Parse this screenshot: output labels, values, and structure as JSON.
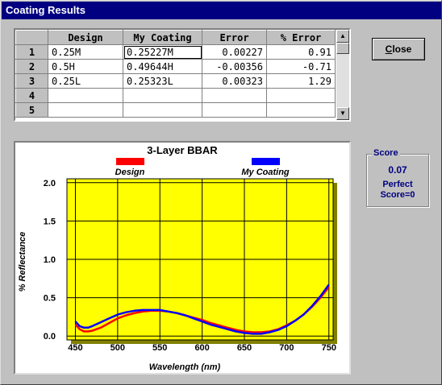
{
  "window": {
    "title": "Coating Results"
  },
  "grid": {
    "columns": [
      "Design",
      "My Coating",
      "Error",
      "% Error"
    ],
    "rows": [
      {
        "n": "1",
        "design": "0.25M",
        "coating": "0.25227M",
        "error": "0.00227",
        "pct": "0.91"
      },
      {
        "n": "2",
        "design": "0.5H",
        "coating": "0.49644H",
        "error": "-0.00356",
        "pct": "-0.71"
      },
      {
        "n": "3",
        "design": "0.25L",
        "coating": "0.25323L",
        "error": "0.00323",
        "pct": "1.29"
      },
      {
        "n": "4",
        "design": "",
        "coating": "",
        "error": "",
        "pct": ""
      },
      {
        "n": "5",
        "design": "",
        "coating": "",
        "error": "",
        "pct": ""
      }
    ]
  },
  "close": {
    "label_first": "C",
    "label_rest": "lose"
  },
  "score": {
    "title": "Score",
    "value": "0.07",
    "perfect_line1": "Perfect",
    "perfect_line2": "Score=0"
  },
  "colors": {
    "design": "#ff0000",
    "coating": "#0000ff",
    "plot_bg": "#ffff00",
    "shadow": "#808000"
  },
  "chart_data": {
    "type": "line",
    "title": "3-Layer BBAR",
    "xlabel": "Wavelength (nm)",
    "ylabel": "% Reflectance",
    "xlim": [
      440,
      755
    ],
    "ylim": [
      -0.05,
      2.05
    ],
    "xticks": [
      450,
      500,
      550,
      600,
      650,
      700,
      750
    ],
    "yticks": [
      0.0,
      0.5,
      1.0,
      1.5,
      2.0
    ],
    "ytick_labels": [
      "0.0",
      "0.5",
      "1.0",
      "1.5",
      "2.0"
    ],
    "grid": true,
    "legend": "top",
    "series": [
      {
        "name": "Design",
        "color": "#ff0000",
        "x": [
          450,
          455,
          460,
          465,
          470,
          480,
          490,
          500,
          510,
          520,
          530,
          540,
          550,
          560,
          570,
          580,
          590,
          600,
          610,
          620,
          630,
          640,
          650,
          660,
          670,
          680,
          690,
          700,
          710,
          720,
          730,
          740,
          750
        ],
        "y": [
          0.15,
          0.09,
          0.06,
          0.06,
          0.07,
          0.11,
          0.17,
          0.23,
          0.27,
          0.3,
          0.32,
          0.33,
          0.33,
          0.32,
          0.3,
          0.27,
          0.24,
          0.21,
          0.17,
          0.14,
          0.11,
          0.08,
          0.06,
          0.05,
          0.05,
          0.06,
          0.09,
          0.14,
          0.2,
          0.28,
          0.38,
          0.5,
          0.64
        ]
      },
      {
        "name": "My Coating",
        "color": "#0000ff",
        "x": [
          450,
          455,
          460,
          465,
          470,
          480,
          490,
          500,
          510,
          520,
          530,
          540,
          550,
          560,
          570,
          580,
          590,
          600,
          610,
          620,
          630,
          640,
          650,
          660,
          670,
          680,
          690,
          700,
          710,
          720,
          730,
          740,
          750
        ],
        "y": [
          0.19,
          0.13,
          0.11,
          0.11,
          0.13,
          0.18,
          0.23,
          0.28,
          0.31,
          0.33,
          0.34,
          0.34,
          0.34,
          0.32,
          0.3,
          0.27,
          0.23,
          0.19,
          0.15,
          0.12,
          0.09,
          0.06,
          0.04,
          0.03,
          0.03,
          0.05,
          0.08,
          0.13,
          0.2,
          0.28,
          0.39,
          0.52,
          0.67
        ]
      }
    ]
  }
}
